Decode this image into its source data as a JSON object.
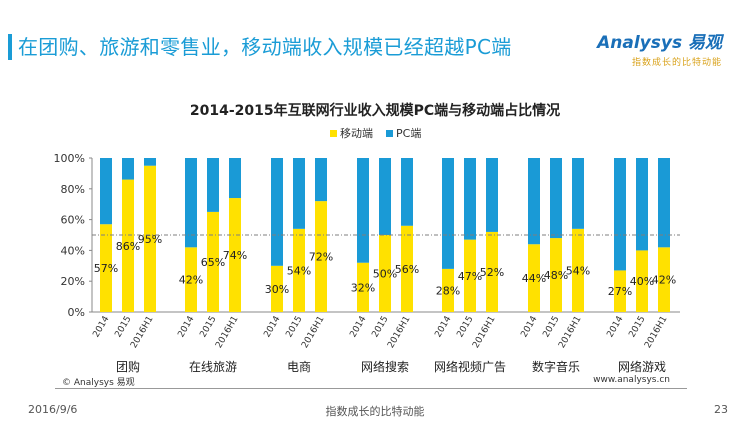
{
  "header": {
    "title": "在团购、旅游和零售业，移动端收入规模已经超越PC端"
  },
  "logo": {
    "brand": "Analysys 易观",
    "slogan": "指数成长的比特动能"
  },
  "footer": {
    "copyright": "© Analysys 易观",
    "website": "www.analysys.cn",
    "date": "2016/9/6",
    "slogan": "指数成长的比特动能",
    "page": "23"
  },
  "chart_data": {
    "type": "bar",
    "stacked": true,
    "title": "2014-2015年互联网行业收入规模PC端与移动端占比情况",
    "xlabel": "",
    "ylabel": "",
    "ylim": [
      0,
      100
    ],
    "yticks": [
      "0%",
      "20%",
      "40%",
      "60%",
      "80%",
      "100%"
    ],
    "legend": {
      "placement": "top",
      "items": [
        "移动端",
        "PC端"
      ]
    },
    "colors": {
      "mobile": "#ffe100",
      "pc": "#1a9ad6"
    },
    "reference_line": 50,
    "groups": [
      "团购",
      "在线旅游",
      "电商",
      "网络搜索",
      "网络视频广告",
      "数字音乐",
      "网络游戏"
    ],
    "periods": [
      "2014",
      "2015",
      "2016H1"
    ],
    "series": [
      {
        "name": "移动端",
        "values": [
          [
            57,
            86,
            95
          ],
          [
            42,
            65,
            74
          ],
          [
            30,
            54,
            72
          ],
          [
            32,
            50,
            56
          ],
          [
            28,
            47,
            52
          ],
          [
            44,
            48,
            54
          ],
          [
            27,
            40,
            42
          ]
        ]
      },
      {
        "name": "PC端",
        "values": [
          [
            43,
            14,
            5
          ],
          [
            58,
            35,
            26
          ],
          [
            70,
            46,
            28
          ],
          [
            68,
            50,
            44
          ],
          [
            72,
            53,
            48
          ],
          [
            56,
            52,
            46
          ],
          [
            73,
            60,
            58
          ]
        ]
      }
    ],
    "data_labels": [
      [
        "57%",
        "86%",
        "95%"
      ],
      [
        "42%",
        "65%",
        "74%"
      ],
      [
        "30%",
        "54%",
        "72%"
      ],
      [
        "32%",
        "50%",
        "56%"
      ],
      [
        "28%",
        "47%",
        "52%"
      ],
      [
        "44%",
        "48%",
        "54%"
      ],
      [
        "27%",
        "40%",
        "42%"
      ]
    ]
  }
}
